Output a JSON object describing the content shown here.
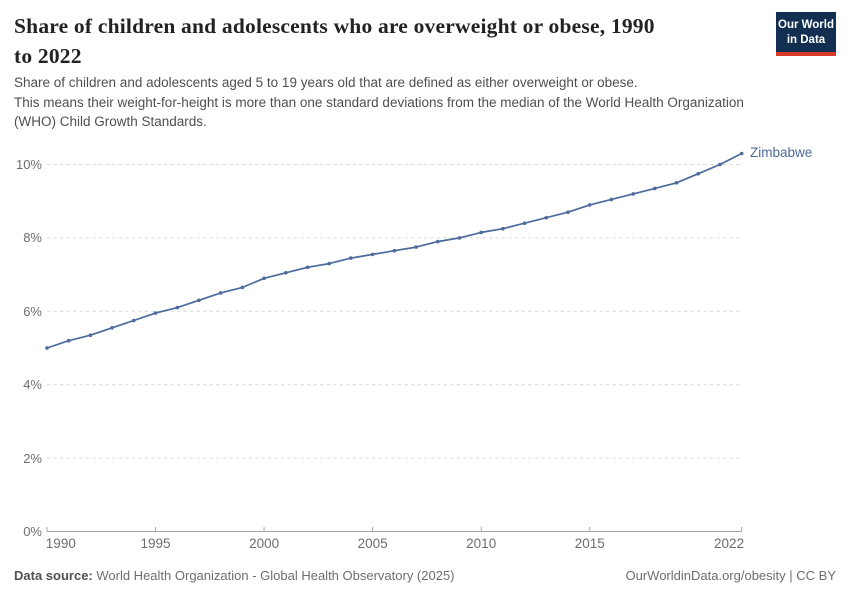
{
  "header": {
    "title_lines": [
      "Share of children and adolescents who are overweight or obese, 1990",
      "to 2022"
    ],
    "subtitle_lines": [
      "Share of children and adolescents aged 5 to 19 years old that are defined as either overweight or obese.",
      "This means their weight-for-height is more than one standard deviations from the median of the World Health Organization",
      "(WHO) Child Growth Standards."
    ],
    "logo": {
      "line1": "Our World",
      "line2": "in Data",
      "bg_color": "#122f51",
      "accent_color": "#d93a2b"
    }
  },
  "chart_data": {
    "type": "line",
    "title": "Share of children and adolescents who are overweight or obese, 1990 to 2022",
    "unit": "%",
    "xlim": [
      1990,
      2022
    ],
    "ylim": [
      0,
      10.7
    ],
    "grid": "dashed-horizontal",
    "x_ticks": [
      1990,
      1995,
      2000,
      2005,
      2010,
      2015,
      2022
    ],
    "y_ticks": [
      0,
      2,
      4,
      6,
      8,
      10
    ],
    "y_tick_suffix": "%",
    "legend_position": "end-of-line-label",
    "series": [
      {
        "name": "Zimbabwe",
        "color": "#4c6a9c",
        "x": [
          1990,
          1991,
          1992,
          1993,
          1994,
          1995,
          1996,
          1997,
          1998,
          1999,
          2000,
          2001,
          2002,
          2003,
          2004,
          2005,
          2006,
          2007,
          2008,
          2009,
          2010,
          2011,
          2012,
          2013,
          2014,
          2015,
          2016,
          2017,
          2018,
          2019,
          2020,
          2021,
          2022
        ],
        "values": [
          5.0,
          5.2,
          5.35,
          5.55,
          5.75,
          5.95,
          6.1,
          6.3,
          6.5,
          6.65,
          6.9,
          7.05,
          7.2,
          7.3,
          7.45,
          7.55,
          7.65,
          7.75,
          7.9,
          8.0,
          8.15,
          8.25,
          8.4,
          8.55,
          8.7,
          8.9,
          9.05,
          9.2,
          9.35,
          9.5,
          9.75,
          10.0,
          10.3
        ]
      }
    ],
    "colors": {
      "gridline": "#dcdcdc",
      "axis": "#a6a6a6",
      "tick_label": "#6d6d6d"
    }
  },
  "footer": {
    "datasource_label": "Data source:",
    "datasource_text": " World Health Organization - Global Health Observatory (2025)",
    "link_text": "OurWorldinData.org/obesity | CC BY"
  }
}
